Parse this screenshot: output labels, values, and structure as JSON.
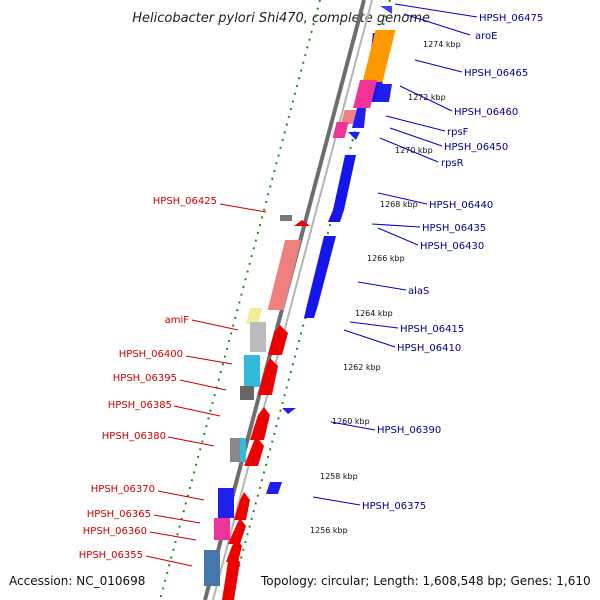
{
  "title": "Helicobacter pylori Shi470, complete genome",
  "footer": {
    "accession": "Accession: NC_010698",
    "summary": "Topology: circular; Length: 1,608,548 bp; Genes: 1,610"
  },
  "scale_labels": [
    "1256 kbp",
    "1258 kbp",
    "1260 kbp",
    "1262 kbp",
    "1264 kbp",
    "1266 kbp",
    "1268 kbp",
    "1270 kbp",
    "1272 kbp",
    "1274 kbp"
  ],
  "genes_forward": [
    "HPSH_06475",
    "aroE",
    "HPSH_06465",
    "HPSH_06460",
    "rpsF",
    "HPSH_06450",
    "rpsR",
    "HPSH_06440",
    "HPSH_06435",
    "HPSH_06430",
    "alaS",
    "HPSH_06415",
    "HPSH_06410",
    "HPSH_06390",
    "HPSH_06375"
  ],
  "genes_reverse": [
    "HPSH_06425",
    "amiF",
    "HPSH_06400",
    "HPSH_06395",
    "HPSH_06385",
    "HPSH_06380",
    "HPSH_06370",
    "HPSH_06365",
    "HPSH_06360",
    "HPSH_06355"
  ],
  "colors": {
    "forward_cds": "#0000ee",
    "reverse_cds": "#ee0000",
    "backbone": "#808080",
    "scale_ticks": "#228b22",
    "label_forward": "#00008b",
    "label_reverse": "#cc0000",
    "category_orange": "#ff9900",
    "category_pink": "#ee3399",
    "category_salmon": "#f08080",
    "category_cyan": "#33bbdd",
    "category_grey": "#bbbbbb",
    "category_yellow": "#eeee99",
    "category_lightblue": "#ccddee"
  }
}
